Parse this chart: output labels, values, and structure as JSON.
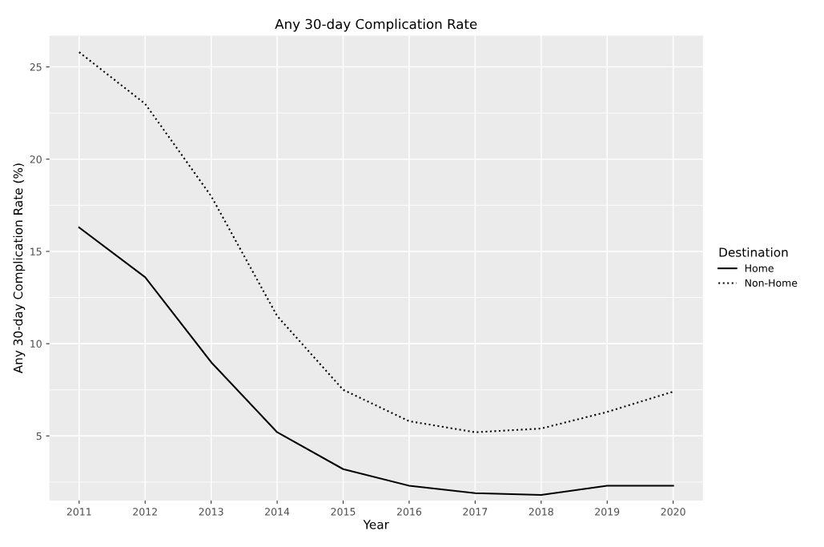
{
  "chart_data": {
    "type": "line",
    "title": "Any 30-day Complication Rate",
    "xlabel": "Year",
    "ylabel": "Any 30-day Complication Rate (%)",
    "legend_title": "Destination",
    "x": [
      2011,
      2012,
      2013,
      2014,
      2015,
      2016,
      2017,
      2018,
      2019,
      2020
    ],
    "series": [
      {
        "name": "Home",
        "color": "#000000",
        "line_style": "solid",
        "values": [
          16.3,
          13.6,
          9.0,
          5.2,
          3.2,
          2.3,
          1.9,
          1.8,
          2.3,
          2.3
        ]
      },
      {
        "name": "Non-Home",
        "color": "#000000",
        "line_style": "dotted",
        "values": [
          25.8,
          23.0,
          18.0,
          11.5,
          7.5,
          5.8,
          5.2,
          5.4,
          6.3,
          7.4
        ]
      }
    ],
    "xlim": [
      2010.55,
      2020.45
    ],
    "xticks": [
      2011,
      2012,
      2013,
      2014,
      2015,
      2016,
      2017,
      2018,
      2019,
      2020
    ],
    "ylim": [
      1.5,
      26.7
    ],
    "yticks": [
      {
        "value": 2.5,
        "label": null
      },
      5,
      {
        "value": 7.5,
        "label": null
      },
      10,
      {
        "value": 12.5,
        "label": null
      },
      15,
      {
        "value": 17.5,
        "label": null
      },
      20,
      {
        "value": 22.5,
        "label": null
      },
      25
    ],
    "grid": true,
    "legend": "right",
    "marker": "none"
  }
}
